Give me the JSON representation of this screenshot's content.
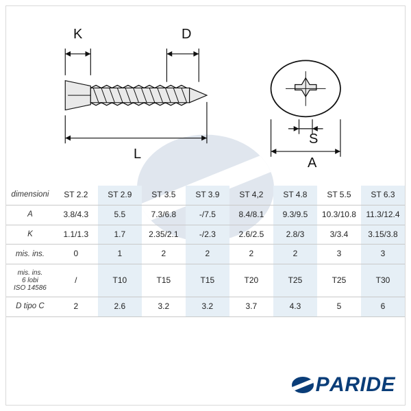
{
  "diagram": {
    "labels": {
      "K": "K",
      "D": "D",
      "L": "L",
      "S": "S",
      "A": "A"
    },
    "label_fontsize": 20,
    "stroke_color": "#111111",
    "fill_gray": "#e9e9e9",
    "background": "#ffffff"
  },
  "table": {
    "blue_bg": "#e6eff6",
    "border_color": "#c9c9c9",
    "fontsize": 12,
    "row_labels": [
      "dimensioni",
      "A",
      "K",
      "mis. ins.",
      "mis. ins.\n6 lobi\nISO 14586",
      "D tipo C"
    ],
    "columns": [
      "ST 2.2",
      "ST 2.9",
      "ST 3.5",
      "ST 3.9",
      "ST 4,2",
      "ST 4.8",
      "ST 5.5",
      "ST 6.3"
    ],
    "rows": [
      [
        "3.8/4.3",
        "5.5",
        "7.3/6.8",
        "-/7.5",
        "8.4/8.1",
        "9.3/9.5",
        "10.3/10.8",
        "11.3/12.4"
      ],
      [
        "1.1/1.3",
        "1.7",
        "2.35/2.1",
        "-/2.3",
        "2.6/2.5",
        "2.8/3",
        "3/3.4",
        "3.15/3.8"
      ],
      [
        "0",
        "1",
        "2",
        "2",
        "2",
        "2",
        "3",
        "3"
      ],
      [
        "/",
        "T10",
        "T15",
        "T15",
        "T20",
        "T25",
        "T25",
        "T30"
      ],
      [
        "2",
        "2.6",
        "3.2",
        "3.2",
        "3.7",
        "4.3",
        "5",
        "6"
      ]
    ],
    "blue_columns": [
      1,
      3,
      5,
      7
    ]
  },
  "logo": {
    "text_left": "P",
    "text_right": "RIDE",
    "color": "#0a3d78",
    "fontsize": 30
  },
  "watermark": {
    "color": "#0a3d78",
    "opacity": 0.12
  }
}
